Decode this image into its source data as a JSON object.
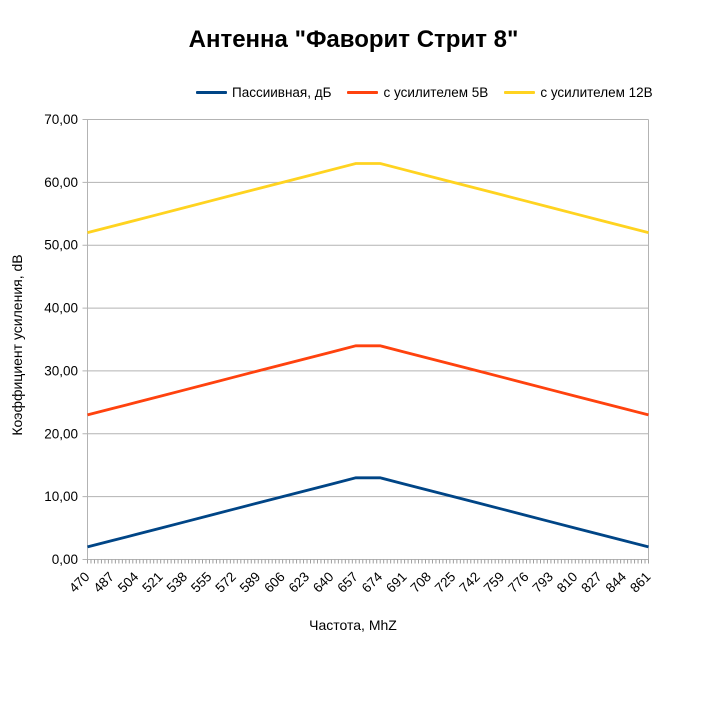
{
  "chart_data": {
    "type": "line",
    "title": "Антенна \"Фаворит Стрит 8\"",
    "xlabel": "Частота, MhZ",
    "ylabel": "Коэффициент усиления, dB",
    "categories": [
      470,
      487,
      504,
      521,
      538,
      555,
      572,
      589,
      606,
      623,
      640,
      657,
      674,
      691,
      708,
      725,
      742,
      759,
      776,
      793,
      810,
      827,
      844,
      861
    ],
    "series": [
      {
        "name": "Пассиивная, дБ",
        "color": "#004586",
        "values": [
          2,
          3,
          4,
          5,
          6,
          7,
          8,
          9,
          10,
          11,
          12,
          13,
          13,
          12,
          11,
          10,
          9,
          8,
          7,
          6,
          5,
          4,
          3,
          2
        ]
      },
      {
        "name": "с усилителем 5В",
        "color": "#FF420E",
        "values": [
          23,
          24,
          25,
          26,
          27,
          28,
          29,
          30,
          31,
          32,
          33,
          34,
          34,
          33,
          32,
          31,
          30,
          29,
          28,
          27,
          26,
          25,
          24,
          23
        ]
      },
      {
        "name": "с усилителем 12В",
        "color": "#FFD320",
        "values": [
          52,
          53,
          54,
          55,
          56,
          57,
          58,
          59,
          60,
          61,
          62,
          63,
          63,
          62,
          61,
          60,
          59,
          58,
          57,
          56,
          55,
          54,
          53,
          52
        ]
      }
    ],
    "ylim": [
      0,
      70
    ],
    "y_ticks": [
      {
        "value": 0,
        "label": "0,00"
      },
      {
        "value": 10,
        "label": "10,00"
      },
      {
        "value": 20,
        "label": "20,00"
      },
      {
        "value": 30,
        "label": "30,00"
      },
      {
        "value": 40,
        "label": "40,00"
      },
      {
        "value": 50,
        "label": "50,00"
      },
      {
        "value": 60,
        "label": "60,00"
      },
      {
        "value": 70,
        "label": "70,00"
      }
    ],
    "grid": "horizontal",
    "legend_position": "top",
    "colors": {
      "grid": "#b3b3b3",
      "axis": "#b3b3b3",
      "minor_tick": "#9e9e9e",
      "text": "#000000",
      "background": "#ffffff"
    }
  }
}
